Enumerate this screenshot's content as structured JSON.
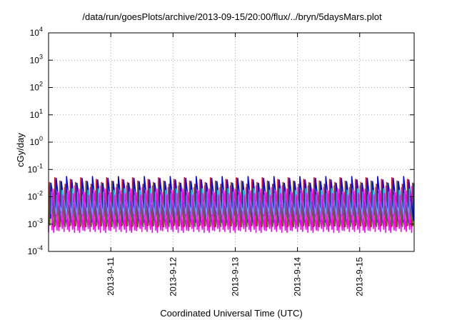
{
  "chart_data": {
    "type": "line",
    "title": "/data/run/goesPlots/archive/2013-09-15/20:00/flux/../bryn/5daysMars.plot",
    "xlabel": "Coordinated Universal Time (UTC)",
    "ylabel": "cGy/day",
    "x_range_days": [
      "2013-09-10 00:00",
      "2013-09-15 21:00"
    ],
    "y_scale": "log",
    "ylim": [
      0.0001,
      10000
    ],
    "grid": true,
    "y_ticks": [
      {
        "base": "10",
        "exp": "-4"
      },
      {
        "base": "10",
        "exp": "-3"
      },
      {
        "base": "10",
        "exp": "-2"
      },
      {
        "base": "10",
        "exp": "-1"
      },
      {
        "base": "10",
        "exp": "0"
      },
      {
        "base": "10",
        "exp": "1"
      },
      {
        "base": "10",
        "exp": "2"
      },
      {
        "base": "10",
        "exp": "3"
      },
      {
        "base": "10",
        "exp": "4"
      }
    ],
    "x_ticks": [
      "2013-9-11",
      "2013-9-12",
      "2013-9-13",
      "2013-9-14",
      "2013-9-15"
    ],
    "cycles_per_day": 12,
    "series": [
      {
        "color": "#ff00ff",
        "min": 0.0005,
        "max": 0.025
      },
      {
        "color": "#ff0000",
        "min": 0.0008,
        "max": 0.05
      },
      {
        "color": "#00aa00",
        "min": 0.0008,
        "max": 0.035
      },
      {
        "color": "#0000ff",
        "min": 0.0012,
        "max": 0.055
      },
      {
        "color": "#00dddd",
        "min": 0.002,
        "max": 0.02
      },
      {
        "color": "#ff00ff",
        "min": 0.0006,
        "max": 0.02
      }
    ]
  }
}
